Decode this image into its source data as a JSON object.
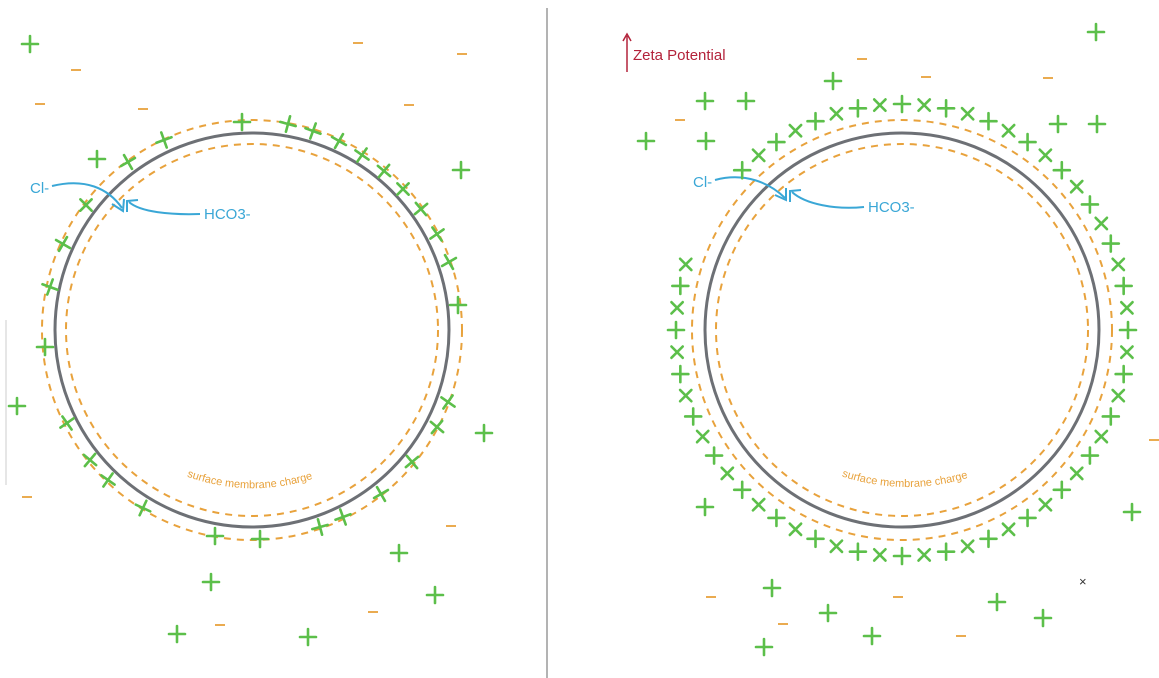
{
  "colors": {
    "membrane": "#6d7075",
    "surface_charge": "#e8a23c",
    "positive_ion": "#5cbf4a",
    "negative_ion": "#e8a23c",
    "arrow": "#3aa7d6",
    "zeta": "#b3223a",
    "divider": "#9a9a9a"
  },
  "icons": {
    "positive": "plus-icon",
    "negative": "minus-icon",
    "cross": "x-mark-icon"
  },
  "left_panel": {
    "cl_label": "Cl-",
    "hco3_label": "HCO3-",
    "surface_label": "surface membrane charge"
  },
  "right_panel": {
    "zeta_label": "Zeta Potential",
    "cl_label": "Cl-",
    "hco3_label": "HCO3-",
    "surface_label": "surface membrane charge"
  }
}
